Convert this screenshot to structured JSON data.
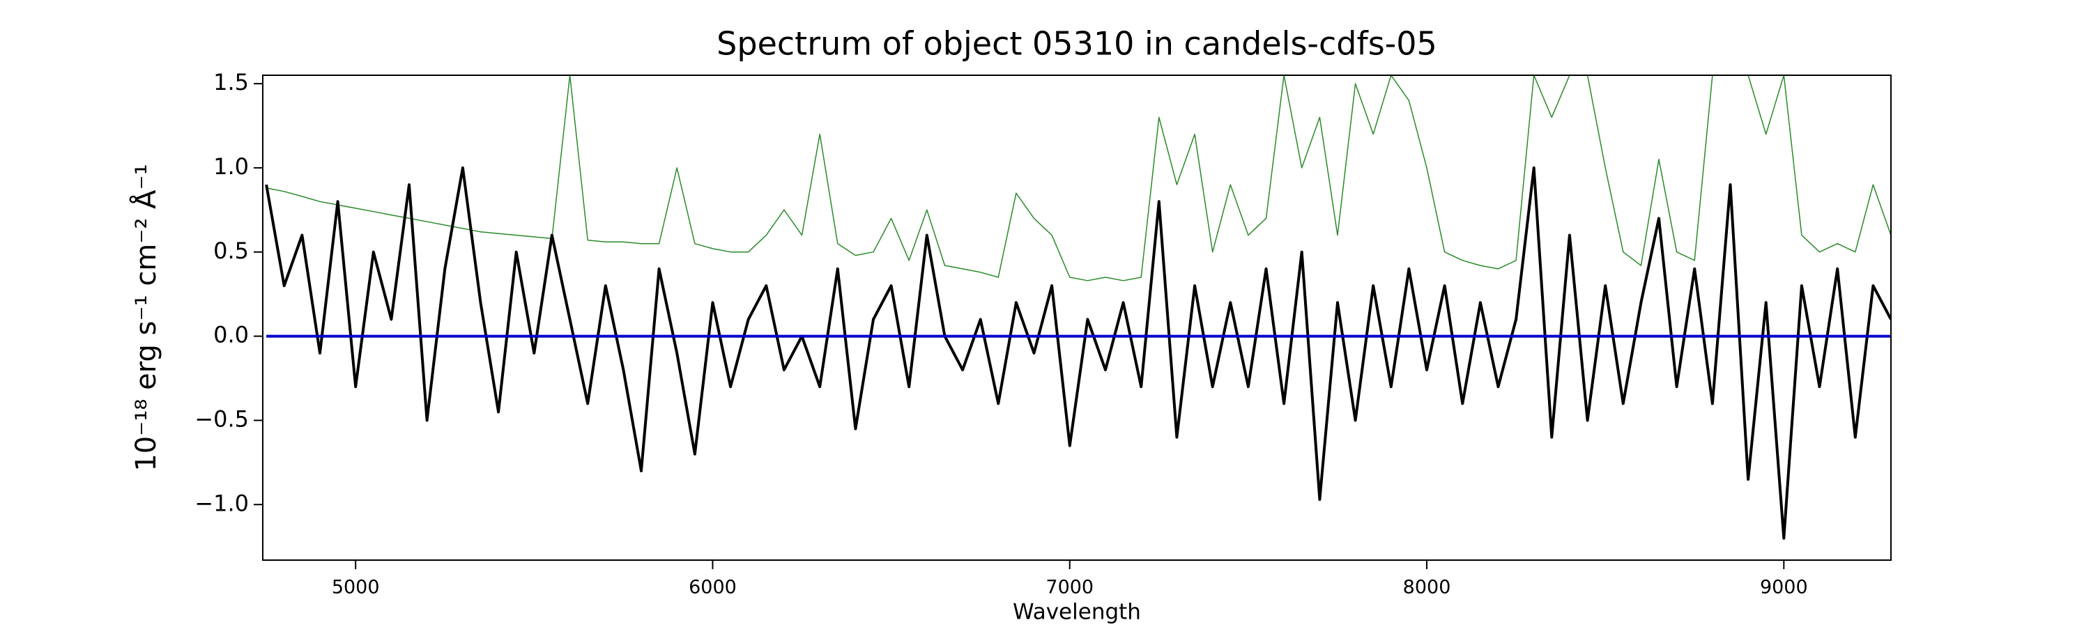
{
  "chart_data": {
    "type": "line",
    "title": "Spectrum of object 05310 in candels-cdfs-05",
    "xlabel": "Wavelength",
    "ylabel": "10⁻¹⁸ erg s⁻¹ cm⁻² Å⁻¹",
    "x": [
      4750,
      4800,
      4850,
      4900,
      4950,
      5000,
      5050,
      5100,
      5150,
      5200,
      5250,
      5300,
      5350,
      5400,
      5450,
      5500,
      5550,
      5600,
      5650,
      5700,
      5750,
      5800,
      5850,
      5900,
      5950,
      6000,
      6050,
      6100,
      6150,
      6200,
      6250,
      6300,
      6350,
      6400,
      6450,
      6500,
      6550,
      6600,
      6650,
      6700,
      6750,
      6800,
      6850,
      6900,
      6950,
      7000,
      7050,
      7100,
      7150,
      7200,
      7250,
      7300,
      7350,
      7400,
      7450,
      7500,
      7550,
      7600,
      7650,
      7700,
      7750,
      7800,
      7850,
      7900,
      7950,
      8000,
      8050,
      8100,
      8150,
      8200,
      8250,
      8300,
      8350,
      8400,
      8450,
      8500,
      8550,
      8600,
      8650,
      8700,
      8750,
      8800,
      8850,
      8900,
      8950,
      9000,
      9050,
      9100,
      9150,
      9200,
      9250,
      9300
    ],
    "series": [
      {
        "color": "#2a8a2a",
        "linewidth": 1.5,
        "values": [
          0.88,
          0.86,
          0.83,
          0.8,
          0.78,
          0.76,
          0.74,
          0.72,
          0.7,
          0.68,
          0.66,
          0.64,
          0.62,
          0.61,
          0.6,
          0.59,
          0.58,
          1.55,
          0.57,
          0.56,
          0.56,
          0.55,
          0.55,
          1.0,
          0.55,
          0.52,
          0.5,
          0.5,
          0.6,
          0.75,
          0.6,
          1.2,
          0.55,
          0.48,
          0.5,
          0.7,
          0.45,
          0.75,
          0.42,
          0.4,
          0.38,
          0.35,
          0.85,
          0.7,
          0.6,
          0.35,
          0.33,
          0.35,
          0.33,
          0.35,
          1.3,
          0.9,
          1.2,
          0.5,
          0.9,
          0.6,
          0.7,
          1.55,
          1.0,
          1.3,
          0.6,
          1.5,
          1.2,
          1.55,
          1.4,
          1.0,
          0.5,
          0.45,
          0.42,
          0.4,
          0.45,
          1.55,
          1.3,
          1.55,
          1.55,
          1.0,
          0.5,
          0.42,
          1.05,
          0.5,
          0.45,
          1.55,
          1.55,
          1.55,
          1.2,
          1.55,
          0.6,
          0.5,
          0.55,
          0.5,
          0.9,
          0.6
        ]
      },
      {
        "color": "#000000",
        "linewidth": 4,
        "values": [
          0.9,
          0.3,
          0.6,
          -0.1,
          0.8,
          -0.3,
          0.5,
          0.1,
          0.9,
          -0.5,
          0.4,
          1.0,
          0.2,
          -0.45,
          0.5,
          -0.1,
          0.6,
          0.1,
          -0.4,
          0.3,
          -0.2,
          -0.8,
          0.4,
          -0.1,
          -0.7,
          0.2,
          -0.3,
          0.1,
          0.3,
          -0.2,
          0.0,
          -0.3,
          0.4,
          -0.55,
          0.1,
          0.3,
          -0.3,
          0.6,
          0.0,
          -0.2,
          0.1,
          -0.4,
          0.2,
          -0.1,
          0.3,
          -0.65,
          0.1,
          -0.2,
          0.2,
          -0.3,
          0.8,
          -0.6,
          0.3,
          -0.3,
          0.2,
          -0.3,
          0.4,
          -0.4,
          0.5,
          -0.97,
          0.2,
          -0.5,
          0.3,
          -0.3,
          0.4,
          -0.2,
          0.3,
          -0.4,
          0.2,
          -0.3,
          0.1,
          1.0,
          -0.6,
          0.6,
          -0.5,
          0.3,
          -0.4,
          0.2,
          0.7,
          -0.3,
          0.4,
          -0.4,
          0.9,
          -0.85,
          0.2,
          -1.2,
          0.3,
          -0.3,
          0.4,
          -0.6,
          0.3,
          0.1
        ]
      },
      {
        "color": "#0000cc",
        "linewidth": 4,
        "values": [
          0,
          0,
          0,
          0,
          0,
          0,
          0,
          0,
          0,
          0,
          0,
          0,
          0,
          0,
          0,
          0,
          0,
          0,
          0,
          0,
          0,
          0,
          0,
          0,
          0,
          0,
          0,
          0,
          0,
          0,
          0,
          0,
          0,
          0,
          0,
          0,
          0,
          0,
          0,
          0,
          0,
          0,
          0,
          0,
          0,
          0,
          0,
          0,
          0,
          0,
          0,
          0,
          0,
          0,
          0,
          0,
          0,
          0,
          0,
          0,
          0,
          0,
          0,
          0,
          0,
          0,
          0,
          0,
          0,
          0,
          0,
          0,
          0,
          0,
          0,
          0,
          0,
          0,
          0,
          0,
          0,
          0,
          0,
          0,
          0,
          0,
          0,
          0,
          0,
          0,
          0,
          0
        ]
      }
    ],
    "xlim": [
      4740,
      9300
    ],
    "xticks": [
      5000,
      6000,
      7000,
      8000,
      9000
    ],
    "ylim": [
      -1.33,
      1.55
    ],
    "yticks": [
      {
        "value": -1.0,
        "label": "−1.0"
      },
      {
        "value": -0.5,
        "label": "−0.5"
      },
      {
        "value": 0.0,
        "label": "0.0"
      },
      {
        "value": 0.5,
        "label": "0.5"
      },
      {
        "value": 1.0,
        "label": "1.0"
      },
      {
        "value": 1.5,
        "label": "1.5"
      }
    ],
    "grid": false
  }
}
